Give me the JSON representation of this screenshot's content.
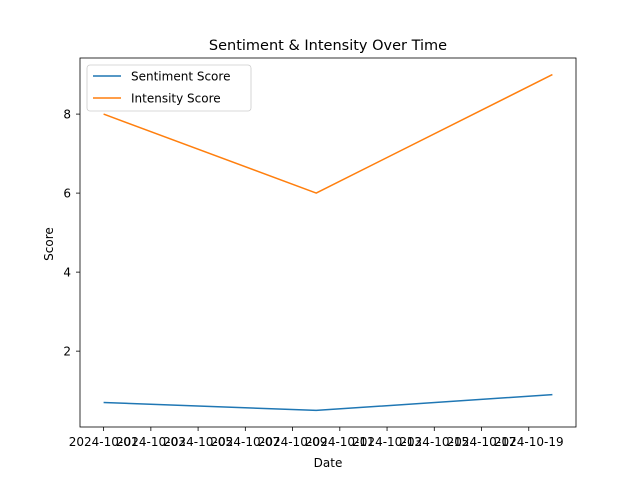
{
  "chart_data": {
    "type": "line",
    "title": "Sentiment & Intensity Over Time",
    "xlabel": "Date",
    "ylabel": "Score",
    "x": [
      "2024-10-01",
      "2024-10-10",
      "2024-10-20"
    ],
    "x_tick_labels": [
      "2024-10-01",
      "2024-10-03",
      "2024-10-05",
      "2024-10-07",
      "2024-10-09",
      "2024-10-11",
      "2024-10-13",
      "2024-10-15",
      "2024-10-17",
      "2024-10-19"
    ],
    "series": [
      {
        "name": "Sentiment Score",
        "values": [
          0.7,
          0.5,
          0.9
        ],
        "color": "#1f77b4"
      },
      {
        "name": "Intensity Score",
        "values": [
          8,
          6,
          9
        ],
        "color": "#ff7f0e"
      }
    ],
    "y_ticks": [
      2,
      4,
      6,
      8
    ],
    "ylim": [
      0.08,
      9.42
    ],
    "xlim": [
      "2024-09-30",
      "2024-10-21"
    ],
    "grid": false,
    "legend_position": "upper left"
  }
}
